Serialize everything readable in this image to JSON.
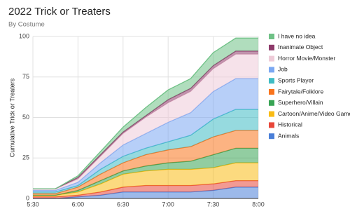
{
  "chart_data": {
    "type": "stacked_area",
    "title": "2022 Trick or Treaters",
    "subtitle": "By Costume",
    "y_label": "Cumulative Trick or Treaters",
    "categories": [
      "5:30",
      null,
      "6:00",
      null,
      "6:30",
      null,
      "7:00",
      null,
      "7:30",
      null,
      "8:00"
    ],
    "ylim": [
      0,
      100
    ],
    "yticks": [
      0,
      25,
      50,
      75,
      100
    ],
    "grid": true,
    "series": [
      {
        "name": "Animals",
        "color": "#4a7fd8",
        "values": [
          0,
          0,
          1,
          2,
          4,
          4,
          4,
          4,
          5,
          7,
          7
        ]
      },
      {
        "name": "Historical",
        "color": "#e8473a",
        "values": [
          1,
          1,
          1,
          2,
          3,
          4,
          4,
          4,
          4,
          4,
          4
        ]
      },
      {
        "name": "Cartoon/Anime/Video Game",
        "color": "#f9bb15",
        "values": [
          1,
          1,
          2,
          5,
          8,
          9,
          10,
          10,
          10,
          11,
          11
        ]
      },
      {
        "name": "Superhero/Villain",
        "color": "#38a454",
        "values": [
          0,
          0,
          1,
          2,
          2,
          3,
          4,
          5,
          8,
          9,
          9
        ]
      },
      {
        "name": "Fairytale/Folklore",
        "color": "#f9741c",
        "values": [
          1,
          1,
          2,
          4,
          5,
          7,
          8,
          9,
          11,
          11,
          11
        ]
      },
      {
        "name": "Sports Player",
        "color": "#3fbcc4",
        "values": [
          1,
          1,
          1,
          3,
          4,
          4,
          5,
          7,
          11,
          13,
          13
        ]
      },
      {
        "name": "Job",
        "color": "#7ba8f2",
        "values": [
          1,
          1,
          2,
          4,
          7,
          9,
          12,
          14,
          17,
          19,
          19
        ]
      },
      {
        "name": "Horror Movie/Monster",
        "color": "#eecbd8",
        "values": [
          1,
          1,
          2,
          4,
          7,
          10,
          12,
          13,
          14,
          15,
          15
        ]
      },
      {
        "name": "Inanimate Object",
        "color": "#8e3a6a",
        "values": [
          0,
          0,
          1,
          1,
          1,
          1,
          2,
          2,
          2,
          2,
          2
        ]
      },
      {
        "name": "I have no idea",
        "color": "#6fc186",
        "values": [
          0,
          0,
          1,
          2,
          3,
          5,
          6,
          6,
          8,
          8,
          8
        ]
      }
    ]
  }
}
